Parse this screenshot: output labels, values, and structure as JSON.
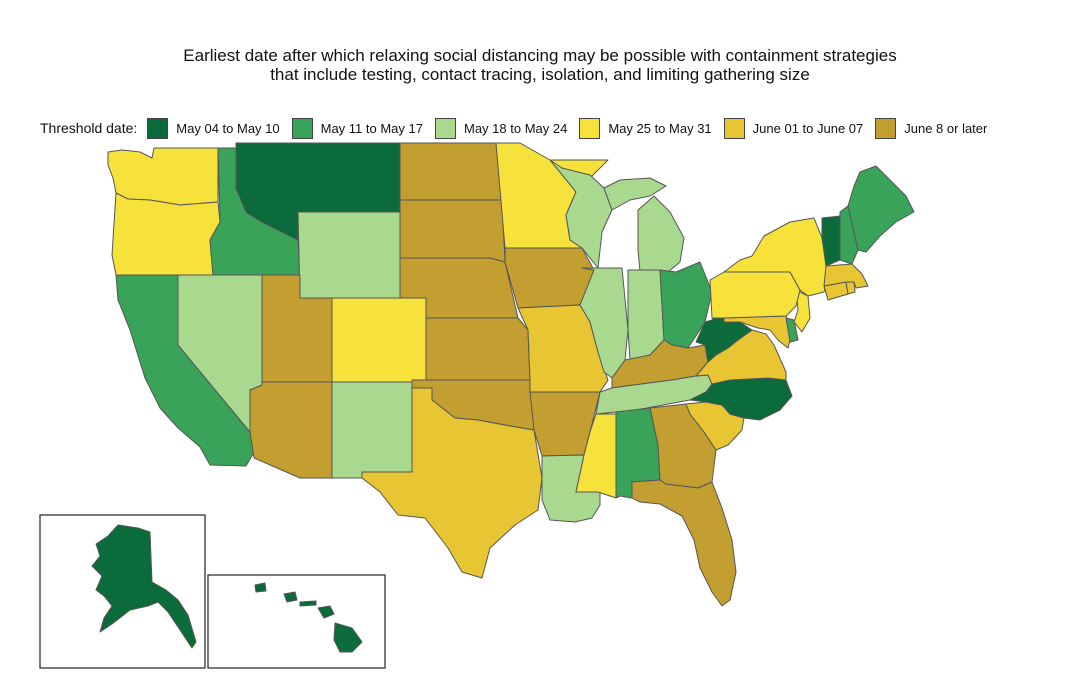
{
  "title_line1": "Earliest date after which relaxing social distancing may be possible with containment strategies",
  "title_line2": "that include testing, contact tracing, isolation, and limiting gathering size",
  "legend": {
    "label": "Threshold date:",
    "categories": [
      {
        "key": "c1",
        "label": "May 04 to May 10",
        "color": "#0b6b3a"
      },
      {
        "key": "c2",
        "label": "May 11 to May 17",
        "color": "#3aa35a"
      },
      {
        "key": "c3",
        "label": "May 18 to May 24",
        "color": "#a9d98f"
      },
      {
        "key": "c4",
        "label": "May 25 to May 31",
        "color": "#f7e23c"
      },
      {
        "key": "c5",
        "label": "June 01 to June 07",
        "color": "#e8c532"
      },
      {
        "key": "c6",
        "label": "June 8 or later",
        "color": "#c39f32"
      }
    ]
  },
  "states": {
    "WA": "c4",
    "OR": "c4",
    "CA": "c2",
    "ID": "c2",
    "NV": "c3",
    "MT": "c1",
    "WY": "c3",
    "UT": "c6",
    "AZ": "c6",
    "CO": "c4",
    "NM": "c3",
    "ND": "c6",
    "SD": "c6",
    "NE": "c6",
    "KS": "c6",
    "OK": "c6",
    "TX": "c5",
    "MN": "c4",
    "IA": "c6",
    "MO": "c5",
    "AR": "c6",
    "LA": "c3",
    "WI": "c3",
    "IL": "c3",
    "MI": "c3",
    "IN": "c3",
    "OH": "c2",
    "KY": "c6",
    "TN": "c3",
    "MS": "c4",
    "AL": "c2",
    "GA": "c6",
    "FL": "c6",
    "SC": "c5",
    "NC": "c1",
    "VA": "c5",
    "WV": "c1",
    "MD": "c5",
    "DE": "c2",
    "NJ": "c4",
    "PA": "c4",
    "NY": "c4",
    "CT": "c5",
    "RI": "c5",
    "MA": "c5",
    "VT": "c1",
    "NH": "c2",
    "ME": "c2",
    "AK": "c1",
    "HI": "c1"
  }
}
